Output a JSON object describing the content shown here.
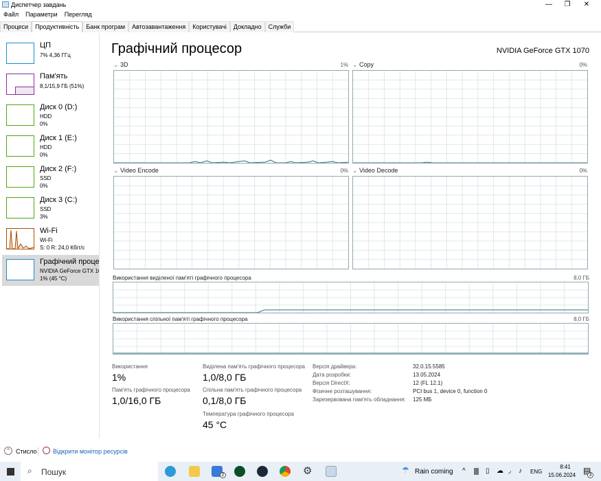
{
  "window": {
    "title": "Диспетчер завдань",
    "minimize": "—",
    "maximize": "❐",
    "close": "✕"
  },
  "menu": [
    "Файл",
    "Параметри",
    "Перегляд"
  ],
  "tabs": [
    "Процеси",
    "Продуктивність",
    "Банк програм",
    "Автозавантаження",
    "Користувачі",
    "Докладно",
    "Служби"
  ],
  "sidebar": {
    "items": [
      {
        "name": "ЦП",
        "sub1": "7% 4,36 ГГц",
        "sub2": "",
        "color": "#1b8fc6"
      },
      {
        "name": "Пам'ять",
        "sub1": "8,1/15,9 ГБ (51%)",
        "sub2": "",
        "color": "#8b2f97"
      },
      {
        "name": "Диск 0 (D:)",
        "sub1": "HDD",
        "sub2": "0%",
        "color": "#4da60c"
      },
      {
        "name": "Диск 1 (E:)",
        "sub1": "HDD",
        "sub2": "0%",
        "color": "#4da60c"
      },
      {
        "name": "Диск 2 (F:)",
        "sub1": "SSD",
        "sub2": "0%",
        "color": "#4da60c"
      },
      {
        "name": "Диск 3 (C:)",
        "sub1": "SSD",
        "sub2": "3%",
        "color": "#4da60c"
      },
      {
        "name": "Wi-Fi",
        "sub1": "Wi-Fi",
        "sub2": "S: 0 R: 24,0 Кбіт/с",
        "color": "#a74f01"
      },
      {
        "name": "Графічний процесор",
        "sub1": "NVIDIA GeForce GTX 1070",
        "sub2": "1% (45 °C)",
        "color": "#1b8fc6"
      }
    ]
  },
  "main": {
    "title": "Графічний процесор",
    "gpu_name": "NVIDIA GeForce GTX 1070",
    "engines": [
      {
        "label": "3D",
        "pct": "1%"
      },
      {
        "label": "Copy",
        "pct": "0%"
      },
      {
        "label": "Video Encode",
        "pct": "0%"
      },
      {
        "label": "Video Decode",
        "pct": "0%"
      }
    ],
    "dedicated": {
      "label": "Використання виділеної пам'яті графічного процесора",
      "max": "8,0 ГБ"
    },
    "shared": {
      "label": "Використання спільної пам'яті графічного процесора",
      "max": "8,0 ГБ"
    },
    "stats": {
      "usage_label": "Використання",
      "usage": "1%",
      "gpu_mem_label": "Пам'ять графічного процесора",
      "gpu_mem": "1,0/16,0 ГБ",
      "ded_label": "Виділена пам'ять графічного процесора",
      "ded": "1,0/8,0 ГБ",
      "shared_label": "Спільна пам'ять графічного процесора",
      "shared": "0,1/8,0 ГБ",
      "temp_label": "Температура графічного процесора",
      "temp": "45 °C"
    },
    "info": [
      {
        "k": "Версія драйвера:",
        "v": "32.0.15.5585"
      },
      {
        "k": "Дата розробки:",
        "v": "13.05.2024"
      },
      {
        "k": "Версія DirectX:",
        "v": "12 (FL 12.1)"
      },
      {
        "k": "Фізичне розташування:",
        "v": "PCI bus 1, device 0, function 0"
      },
      {
        "k": "Зарезервована пам'ять обладнання:",
        "v": "125 МБ"
      }
    ]
  },
  "footer": {
    "less": "Стисло",
    "monitor": "Відкрити монітор ресурсів"
  },
  "taskbar": {
    "search": "Пошук",
    "weather": "Rain coming",
    "lang": "ENG",
    "time": "8:41",
    "date": "15.06.2024",
    "mail_badge": "2",
    "notif_badge": "3"
  },
  "colors": {
    "graph_border": "#8fa9ae",
    "graph_line": "#2a6e7a",
    "grid": "#dde8ec",
    "selected": "#d9d9d9",
    "link": "#1a5fb4"
  }
}
